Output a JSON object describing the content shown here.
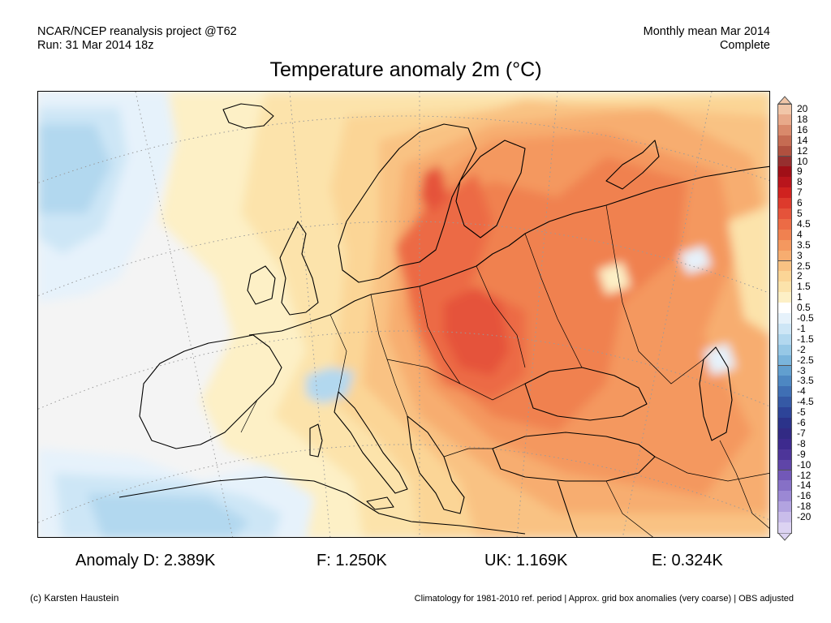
{
  "header": {
    "line1_left": "NCAR/NCEP reanalysis project @T62",
    "line2_left": "Run: 31 Mar 2014 18z",
    "line1_right": "Monthly mean Mar 2014",
    "line2_right": "Complete"
  },
  "title": "Temperature anomaly 2m (°C)",
  "colorbar": {
    "labels": [
      "20",
      "18",
      "16",
      "14",
      "12",
      "10",
      "9",
      "8",
      "7",
      "6",
      "5",
      "4.5",
      "4",
      "3.5",
      "3",
      "2.5",
      "2",
      "1.5",
      "1",
      "0.5",
      "-0.5",
      "-1",
      "-1.5",
      "-2",
      "-2.5",
      "-3",
      "-3.5",
      "-4",
      "-4.5",
      "-5",
      "-6",
      "-7",
      "-8",
      "-9",
      "-10",
      "-12",
      "-14",
      "-16",
      "-18",
      "-20"
    ],
    "colors": [
      "#f1c6a8",
      "#e8a98a",
      "#d9896b",
      "#c56b52",
      "#b0503f",
      "#962f2f",
      "#a00f17",
      "#b9151c",
      "#d0221f",
      "#dd3a2c",
      "#e5533a",
      "#ec6b45",
      "#f08150",
      "#f4985f",
      "#f7ad70",
      "#f9c283",
      "#fbd596",
      "#fce3ab",
      "#fdf0c6",
      "#ffffff",
      "#e6f2fb",
      "#cde6f6",
      "#b2d8ef",
      "#96c8e6",
      "#7ab5dc",
      "#619fcf",
      "#4d87c2",
      "#3f6fb4",
      "#3559a5",
      "#2d4498",
      "#2b338a",
      "#322a84",
      "#3d2a8e",
      "#4d3599",
      "#5f45a8",
      "#7258b8",
      "#8670c6",
      "#9b88d4",
      "#b2a3e0",
      "#c9bdea",
      "#dcd3f2"
    ]
  },
  "stats": {
    "D": "Anomaly D: 2.389K",
    "F": "F: 1.250K",
    "UK": "UK: 1.169K",
    "E": "E: 0.324K"
  },
  "footer": {
    "left": "(c) Karsten Haustein",
    "right": "Climatology for 1981-2010 ref. period | Approx. grid box anomalies (very coarse) | OBS adjusted"
  }
}
